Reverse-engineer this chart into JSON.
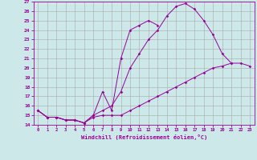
{
  "xlabel": "Windchill (Refroidissement éolien,°C)",
  "bg_color": "#cce8e8",
  "line_color": "#990099",
  "grid_color": "#aaaaaa",
  "xlim": [
    -0.5,
    23.5
  ],
  "ylim": [
    14,
    27
  ],
  "xticks": [
    0,
    1,
    2,
    3,
    4,
    5,
    6,
    7,
    8,
    9,
    10,
    11,
    12,
    13,
    14,
    15,
    16,
    17,
    18,
    19,
    20,
    21,
    22,
    23
  ],
  "yticks": [
    14,
    15,
    16,
    17,
    18,
    19,
    20,
    21,
    22,
    23,
    24,
    25,
    26,
    27
  ],
  "series": [
    {
      "x": [
        0,
        1,
        2,
        3,
        4,
        5,
        6,
        7,
        8,
        9,
        10,
        11,
        12,
        13,
        14,
        15,
        16,
        17,
        18,
        19,
        20,
        21,
        22,
        23
      ],
      "y": [
        15.5,
        14.8,
        14.8,
        14.5,
        14.5,
        14.2,
        14.8,
        15.0,
        15.0,
        15.0,
        15.5,
        16.0,
        16.5,
        17.0,
        17.5,
        18.0,
        18.5,
        19.0,
        19.5,
        20.0,
        20.2,
        20.5,
        20.5,
        20.2
      ]
    },
    {
      "x": [
        0,
        1,
        2,
        3,
        4,
        5,
        6,
        7,
        8,
        9,
        10,
        11,
        12,
        13,
        14,
        15,
        16,
        17,
        18,
        19,
        20,
        21,
        22,
        23
      ],
      "y": [
        15.5,
        14.8,
        14.8,
        14.5,
        14.5,
        14.2,
        15.0,
        15.5,
        16.0,
        17.5,
        20.0,
        21.5,
        23.0,
        24.0,
        25.5,
        26.5,
        26.8,
        26.2,
        25.0,
        23.5,
        21.5,
        20.5,
        null,
        null
      ]
    },
    {
      "x": [
        0,
        1,
        2,
        3,
        4,
        5,
        6,
        7,
        8,
        9,
        10,
        11,
        12,
        13
      ],
      "y": [
        15.5,
        14.8,
        14.8,
        14.5,
        14.5,
        14.2,
        15.0,
        17.5,
        15.5,
        21.0,
        24.0,
        24.5,
        25.0,
        24.5
      ]
    }
  ]
}
